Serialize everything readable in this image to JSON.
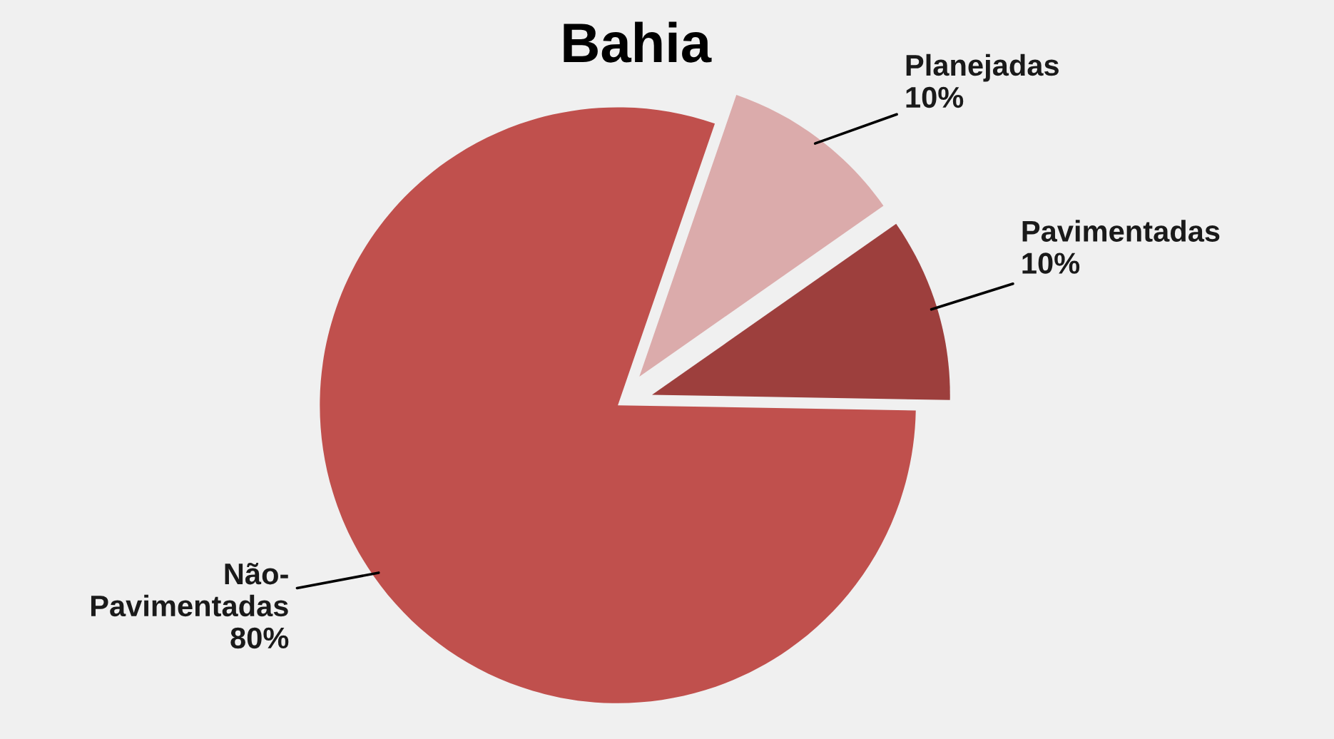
{
  "chart_data": {
    "type": "pie",
    "title": "Bahia",
    "categories": [
      "Pavimentadas",
      "Planejadas",
      "Não-\nPavimentadas"
    ],
    "values": [
      10,
      10,
      80
    ],
    "colors": [
      "#9d3f3d",
      "#dbabab",
      "#c0504d"
    ],
    "value_labels": [
      "10%",
      "10%",
      "80%"
    ],
    "legend": false
  }
}
